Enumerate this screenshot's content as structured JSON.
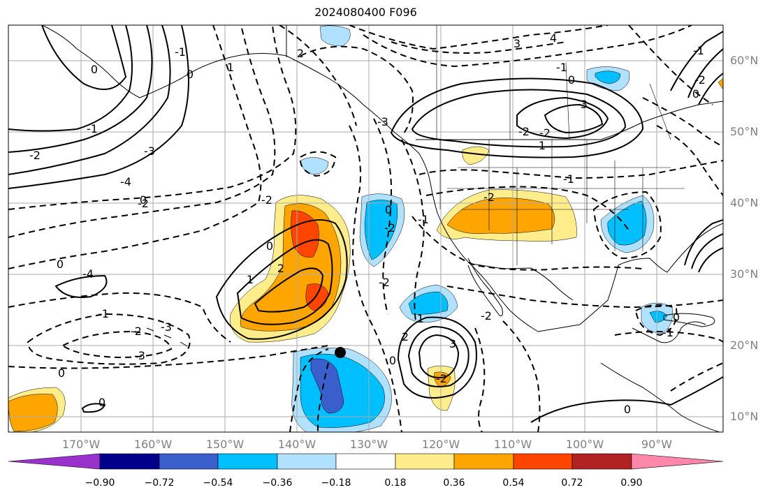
{
  "title": "2024080400 F096",
  "latitude_labels": [
    "60°N",
    "50°N",
    "40°N",
    "30°N",
    "20°N",
    "10°N"
  ],
  "longitude_labels": [
    "170°W",
    "160°W",
    "150°W",
    "140°W",
    "130°W",
    "120°W",
    "110°W",
    "100°W",
    "90°W"
  ],
  "contour_labels": [
    "0",
    "-1",
    "-2",
    "-3",
    "-4",
    "-2",
    "-1",
    "0",
    "1",
    "2",
    "3",
    "4",
    "0",
    "-1",
    "-2",
    "0",
    "0",
    "-2",
    "-1",
    "-2",
    "-3",
    "-4",
    "0",
    "1",
    "2",
    "-2",
    "0",
    "-1",
    "1",
    "2",
    "3",
    "-2",
    "-2",
    "0",
    "-2",
    "1",
    "3",
    "-2",
    "-1",
    "0",
    "0",
    "-2",
    "0",
    "-1",
    "-3",
    "-3",
    "-1",
    "-2",
    "0",
    "0"
  ],
  "colorbar": {
    "ticks": [
      "−0.90",
      "−0.72",
      "−0.54",
      "−0.36",
      "−0.18",
      "0.18",
      "0.36",
      "0.54",
      "0.72",
      "0.90"
    ],
    "colors": [
      "#9932cc",
      "#00008b",
      "#3a5fcd",
      "#00bfff",
      "#b0e2ff",
      "#ffffff",
      "#ffec8b",
      "#ffa500",
      "#ff4500",
      "#b22222",
      "#ff88aa"
    ]
  },
  "marker": "point"
}
